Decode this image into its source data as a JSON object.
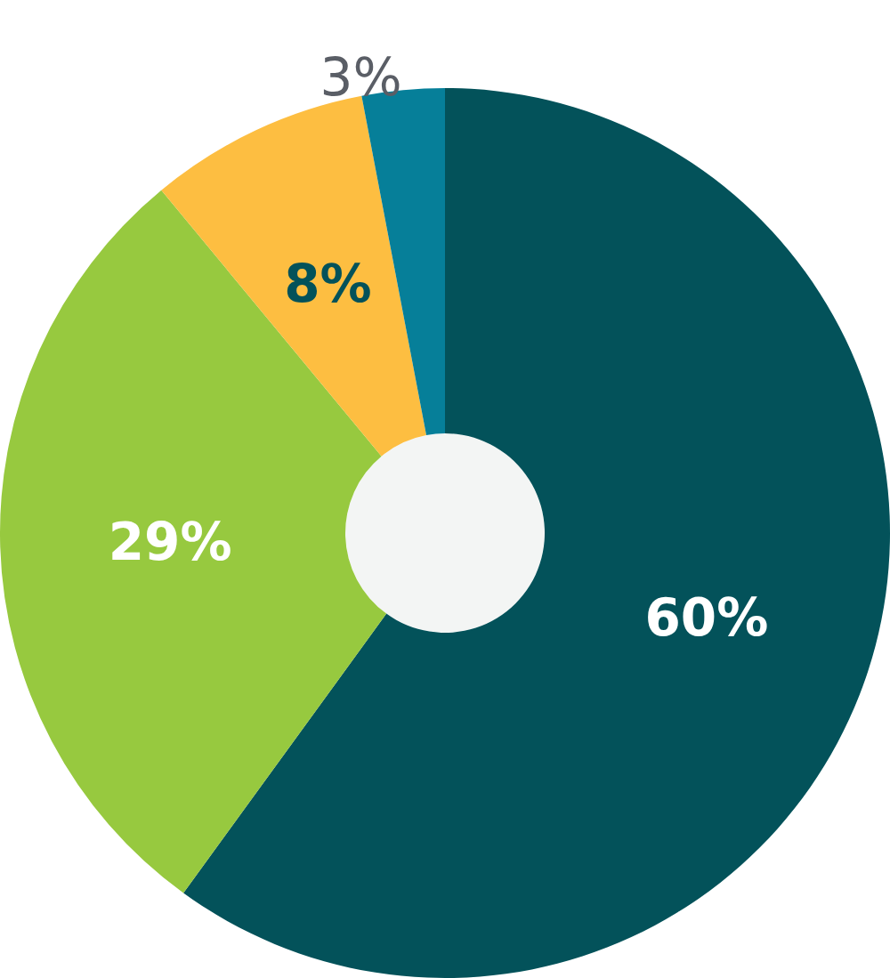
{
  "chart_data": {
    "type": "donut",
    "categories": [
      null,
      null,
      null,
      null
    ],
    "values": [
      60,
      29,
      8,
      3
    ],
    "colors": [
      "#03525a",
      "#97c93f",
      "#fdbe41",
      "#067f99"
    ],
    "value_labels": [
      "60%",
      "29%",
      "8%",
      "3%"
    ]
  }
}
